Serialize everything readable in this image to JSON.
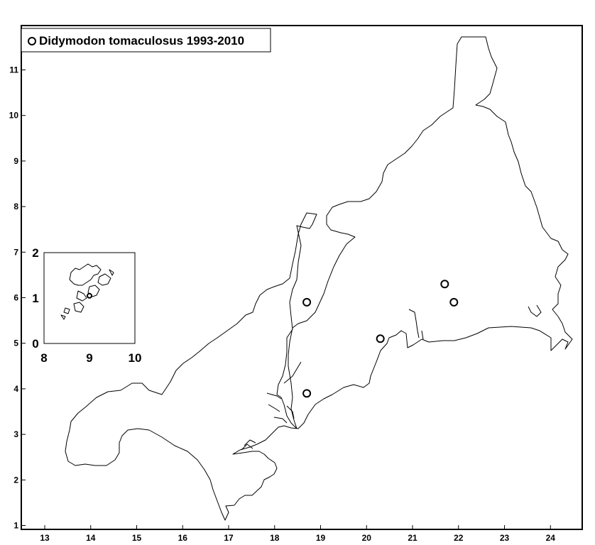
{
  "legend": {
    "label": "Didymodon tomaculosus 1993-2010",
    "symbol": "open-circle"
  },
  "axes": {
    "x_ticks": [
      "13",
      "14",
      "15",
      "16",
      "17",
      "18",
      "19",
      "20",
      "21",
      "22",
      "23",
      "24"
    ],
    "y_ticks": [
      "1",
      "2",
      "3",
      "4",
      "5",
      "6",
      "7",
      "8",
      "9",
      "10",
      "11"
    ]
  },
  "inset": {
    "x_ticks": [
      "8",
      "9",
      "10"
    ],
    "y_ticks": [
      "0",
      "1",
      "2"
    ]
  },
  "records": [
    {
      "x": 18.7,
      "y": 5.9
    },
    {
      "x": 18.7,
      "y": 3.9
    },
    {
      "x": 20.3,
      "y": 5.1
    },
    {
      "x": 21.7,
      "y": 6.3
    },
    {
      "x": 21.9,
      "y": 5.9
    }
  ],
  "inset_records": [
    {
      "x": 9.0,
      "y": 1.05
    }
  ],
  "colors": {
    "ink": "#000000",
    "background": "#ffffff"
  }
}
